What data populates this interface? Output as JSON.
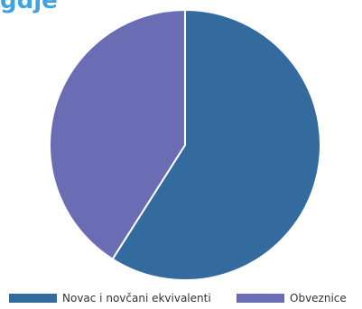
{
  "header": {
    "title": "gdje"
  },
  "colors": {
    "title": "#3ea3de",
    "slice_stroke": "#ffffff",
    "legend_text": "#333333"
  },
  "chart_data": {
    "type": "pie",
    "categories": [
      "Novac i novčani ekvivalenti",
      "Obveznice"
    ],
    "values": [
      59,
      41
    ],
    "unit": "",
    "colors": [
      "#336b9f",
      "#6a6db4"
    ],
    "start_angle_deg": 0,
    "direction": "clockwise",
    "legend": {
      "position": "bottom",
      "entries": [
        "Novac i novčani ekvivalenti",
        "Obveznice"
      ]
    }
  }
}
